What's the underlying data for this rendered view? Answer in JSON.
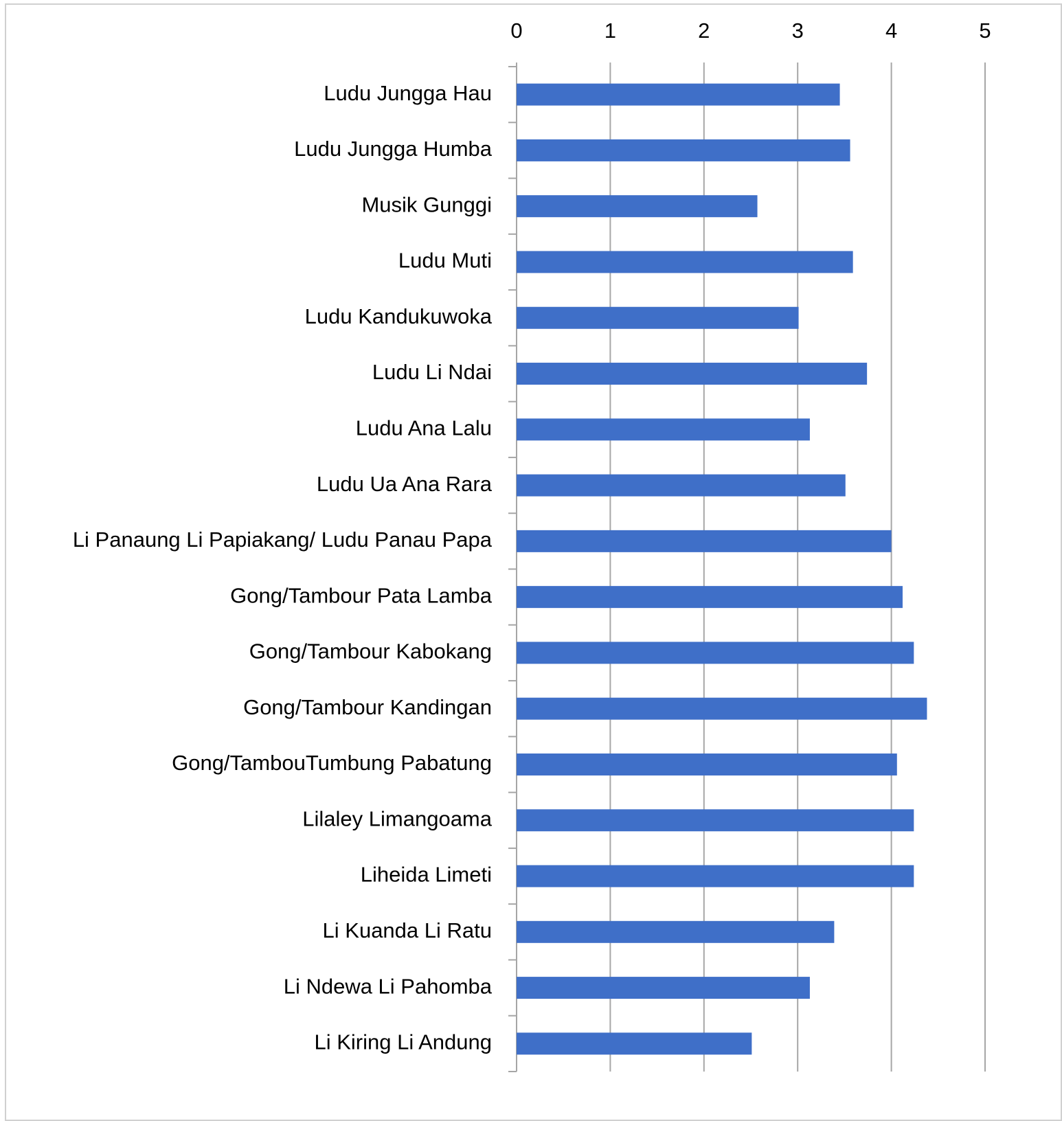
{
  "chart_data": {
    "type": "bar",
    "orientation": "horizontal",
    "categories": [
      "Ludu Jungga Hau",
      "Ludu Jungga Humba",
      "Musik Gunggi",
      "Ludu Muti",
      "Ludu Kandukuwoka",
      "Ludu Li Ndai",
      "Ludu Ana Lalu",
      "Ludu Ua Ana Rara",
      "Li Panaung Li Papiakang/ Ludu Panau Papa",
      "Gong/Tambour Pata Lamba",
      "Gong/Tambour Kabokang",
      "Gong/Tambour Kandingan",
      "Gong/TambouTumbung Pabatung",
      "Lilaley Limangoama",
      "Liheida Limeti",
      "Li Kuanda Li Ratu",
      "Li Ndewa Li Pahomba",
      "Li Kiring Li Andung"
    ],
    "values": [
      3.45,
      3.56,
      2.57,
      3.59,
      3.01,
      3.74,
      3.13,
      3.51,
      4.0,
      4.12,
      4.24,
      4.38,
      4.06,
      4.24,
      4.24,
      3.39,
      3.13,
      2.51
    ],
    "color": "#3f6fc8",
    "xlim": [
      0,
      5
    ],
    "xticks": [
      0,
      1,
      2,
      3,
      4,
      5
    ],
    "grid": true,
    "x_axis_position": "top"
  }
}
